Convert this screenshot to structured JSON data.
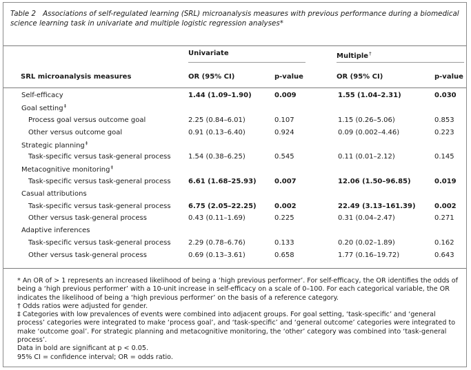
{
  "caption": {
    "label": "Table 2",
    "text": "Associations of self-regulated learning (SRL) microanalysis measures with previous performance during a biomedical science learning task in univariate and multiple logistic regression analyses*"
  },
  "headers": {
    "univariate": "Univariate",
    "multiple": "Multiple",
    "multiple_mark": "†",
    "measures": "SRL microanalysis measures",
    "or_uni": "OR (95% CI)",
    "p_uni": "p-value",
    "or_multi": "OR (95% CI)",
    "p_multi": "p-value"
  },
  "rows": [
    {
      "label": "Self-efficacy",
      "mark": "",
      "indent": false,
      "bold": true,
      "or_uni": "1.44 (1.09–1.90)",
      "p_uni": "0.009",
      "or_multi": "1.55 (1.04–2.31)",
      "p_multi": "0.030"
    },
    {
      "label": "Goal setting",
      "mark": "‡",
      "indent": false,
      "bold": false,
      "or_uni": "",
      "p_uni": "",
      "or_multi": "",
      "p_multi": ""
    },
    {
      "label": "Process goal versus outcome goal",
      "mark": "",
      "indent": true,
      "bold": false,
      "or_uni": "2.25 (0.84–6.01)",
      "p_uni": "0.107",
      "or_multi": "1.15 (0.26–5.06)",
      "p_multi": "0.853"
    },
    {
      "label": "Other versus outcome goal",
      "mark": "",
      "indent": true,
      "bold": false,
      "or_uni": "0.91 (0.13–6.40)",
      "p_uni": "0.924",
      "or_multi": "0.09 (0.002–4.46)",
      "p_multi": "0.223"
    },
    {
      "label": "Strategic planning",
      "mark": "‡",
      "indent": false,
      "bold": false,
      "or_uni": "",
      "p_uni": "",
      "or_multi": "",
      "p_multi": ""
    },
    {
      "label": "Task-specific versus task-general process",
      "mark": "",
      "indent": true,
      "bold": false,
      "or_uni": "1.54 (0.38–6.25)",
      "p_uni": "0.545",
      "or_multi": "0.11 (0.01–2.12)",
      "p_multi": "0.145"
    },
    {
      "label": "Metacognitive monitoring",
      "mark": "‡",
      "indent": false,
      "bold": false,
      "or_uni": "",
      "p_uni": "",
      "or_multi": "",
      "p_multi": ""
    },
    {
      "label": "Task-specific versus task-general process",
      "mark": "",
      "indent": true,
      "bold": true,
      "or_uni": "6.61 (1.68–25.93)",
      "p_uni": "0.007",
      "or_multi": "12.06 (1.50–96.85)",
      "p_multi": "0.019"
    },
    {
      "label": "Casual attributions",
      "mark": "",
      "indent": false,
      "bold": false,
      "or_uni": "",
      "p_uni": "",
      "or_multi": "",
      "p_multi": ""
    },
    {
      "label": "Task-specific versus task-general process",
      "mark": "",
      "indent": true,
      "bold": true,
      "or_uni": "6.75 (2.05–22.25)",
      "p_uni": "0.002",
      "or_multi": "22.49 (3.13–161.39)",
      "p_multi": "0.002"
    },
    {
      "label": "Other versus task-general process",
      "mark": "",
      "indent": true,
      "bold": false,
      "or_uni": "0.43 (0.11–1.69)",
      "p_uni": "0.225",
      "or_multi": "0.31 (0.04–2.47)",
      "p_multi": "0.271"
    },
    {
      "label": "Adaptive inferences",
      "mark": "",
      "indent": false,
      "bold": false,
      "or_uni": "",
      "p_uni": "",
      "or_multi": "",
      "p_multi": ""
    },
    {
      "label": "Task-specific versus task-general process",
      "mark": "",
      "indent": true,
      "bold": false,
      "or_uni": "2.29 (0.78–6.76)",
      "p_uni": "0.133",
      "or_multi": "0.20 (0.02–1.89)",
      "p_multi": "0.162"
    },
    {
      "label": "Other versus task-general process",
      "mark": "",
      "indent": true,
      "bold": false,
      "or_uni": "0.69 (0.13–3.61)",
      "p_uni": "0.658",
      "or_multi": "1.77 (0.16–19.72)",
      "p_multi": "0.643"
    }
  ],
  "footnotes": [
    "* An OR of > 1 represents an increased likelihood of being a ‘high previous performer’. For self-efficacy, the OR identifies the odds of being a ‘high previous performer’ with a 10-unit increase in self-efficacy on a scale of 0–100. For each categorical variable, the OR indicates the likelihood of being a ‘high previous performer’ on the basis of a reference category.",
    "† Odds ratios were adjusted for gender.",
    "‡ Categories with low prevalences of events were combined into adjacent groups. For goal setting, ‘task-specific’ and ‘general process’ categories were integrated to make ‘process goal’, and ‘task-specific’ and ‘general outcome’ categories were integrated to make ‘outcome goal’. For strategic planning and metacognitive monitoring, the ‘other’ category was combined into ‘task-general process’.",
    "Data in bold are significant at p < 0.05.",
    "95% CI = confidence interval; OR = odds ratio."
  ]
}
